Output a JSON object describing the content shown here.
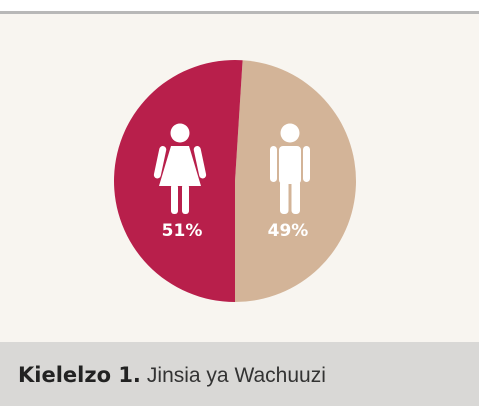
{
  "chart_data": {
    "type": "pie",
    "figure_label": "Kielelzo 1.",
    "title": "Jinsia ya Wachuuzi",
    "values": [
      51,
      49
    ],
    "value_labels": [
      "51%",
      "49%"
    ],
    "colors": [
      "#b81f4b",
      "#d3b498"
    ]
  }
}
